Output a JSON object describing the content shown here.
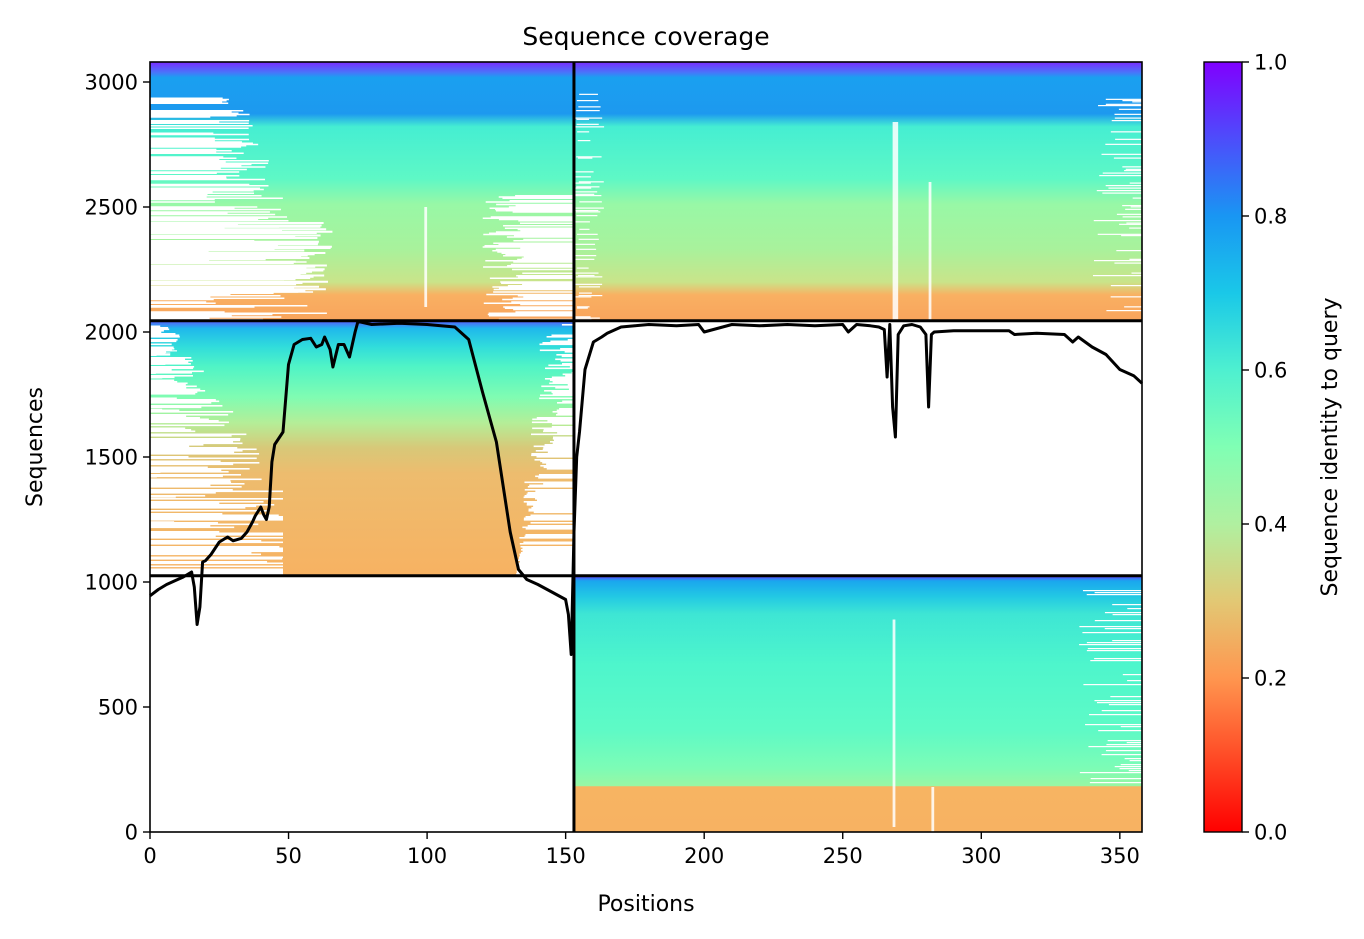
{
  "chart_data": {
    "type": "heatmap",
    "title": "Sequence coverage",
    "xlabel": "Positions",
    "ylabel": "Sequences",
    "colorbar_label": "Sequence identity to query",
    "colormap": "rainbow",
    "xlim": [
      0,
      358
    ],
    "ylim": [
      0,
      3080
    ],
    "x_ticks": [
      0,
      50,
      100,
      150,
      200,
      250,
      300,
      350
    ],
    "y_ticks": [
      0,
      500,
      1000,
      1500,
      2000,
      2500,
      3000
    ],
    "colorbar_ticks": [
      0.0,
      0.2,
      0.4,
      0.6,
      0.8,
      1.0
    ],
    "colorbar_tick_labels": [
      "0.0",
      "0.2",
      "0.4",
      "0.6",
      "0.8",
      "1.0"
    ],
    "x_tick_labels": [
      "0",
      "50",
      "100",
      "150",
      "200",
      "250",
      "300",
      "350"
    ],
    "y_tick_labels": [
      "0",
      "500",
      "1000",
      "1500",
      "2000",
      "2500",
      "3000"
    ],
    "block_dividers": {
      "x": 153,
      "y": [
        1025,
        2045
      ]
    },
    "blocks": [
      {
        "name": "A_only",
        "x_range": [
          0,
          153
        ],
        "y_range": [
          1025,
          2045
        ],
        "coverage_x_range": [
          0,
          153
        ],
        "core_x_range": [
          48,
          132
        ],
        "identity_top": 0.75,
        "identity_bottom": 0.25
      },
      {
        "name": "B_only",
        "x_range": [
          153,
          358
        ],
        "y_range": [
          0,
          1025
        ],
        "coverage_x_range": [
          153,
          358
        ],
        "core_x_range": [
          153,
          358
        ],
        "identity_top": 0.8,
        "identity_bottom": 0.28,
        "identity_low_band": [
          0,
          175,
          0.25
        ]
      },
      {
        "name": "paired",
        "x_range": [
          0,
          358
        ],
        "y_range": [
          2045,
          3080
        ],
        "coverage_x_range": [
          0,
          358
        ],
        "core_x_range": [
          50,
          358
        ],
        "identity_top": 0.95,
        "identity_bottom": 0.22
      }
    ],
    "coverage_line": {
      "x": [
        0,
        3,
        6,
        9,
        12,
        15,
        16,
        17,
        18,
        19,
        20,
        22,
        25,
        28,
        30,
        33,
        35,
        37,
        38,
        40,
        41,
        42,
        43,
        44,
        45,
        48,
        50,
        52,
        55,
        58,
        60,
        62,
        63,
        65,
        66,
        68,
        70,
        72,
        73,
        74,
        75,
        76,
        80,
        90,
        100,
        105,
        110,
        115,
        120,
        125,
        130,
        133,
        136,
        140,
        145,
        150,
        151,
        152,
        153,
        154,
        155,
        157,
        160,
        163,
        165,
        170,
        175,
        180,
        190,
        198,
        200,
        210,
        220,
        230,
        240,
        250,
        252,
        255,
        260,
        263,
        265,
        266,
        267,
        268,
        269,
        270,
        272,
        275,
        278,
        280,
        281,
        282,
        283,
        290,
        300,
        310,
        312,
        320,
        330,
        333,
        335,
        340,
        345,
        350,
        355,
        358
      ],
      "y": [
        945,
        970,
        990,
        1005,
        1020,
        1040,
        980,
        830,
        900,
        1080,
        1085,
        1110,
        1160,
        1180,
        1165,
        1175,
        1200,
        1240,
        1265,
        1300,
        1270,
        1250,
        1300,
        1480,
        1550,
        1600,
        1870,
        1950,
        1970,
        1975,
        1940,
        1950,
        1980,
        1930,
        1860,
        1950,
        1950,
        1900,
        1950,
        2000,
        2040,
        2040,
        2030,
        2035,
        2030,
        2025,
        2020,
        1970,
        1760,
        1560,
        1200,
        1050,
        1010,
        990,
        960,
        930,
        870,
        710,
        1200,
        1500,
        1600,
        1850,
        1960,
        1980,
        1995,
        2020,
        2025,
        2030,
        2025,
        2030,
        2000,
        2030,
        2025,
        2030,
        2025,
        2030,
        2000,
        2030,
        2025,
        2020,
        2010,
        1820,
        2030,
        1700,
        1580,
        1990,
        2025,
        2030,
        2020,
        1990,
        1700,
        1990,
        2000,
        2005,
        2005,
        2005,
        1990,
        1995,
        1990,
        1960,
        1980,
        1940,
        1910,
        1850,
        1825,
        1795
      ]
    }
  }
}
